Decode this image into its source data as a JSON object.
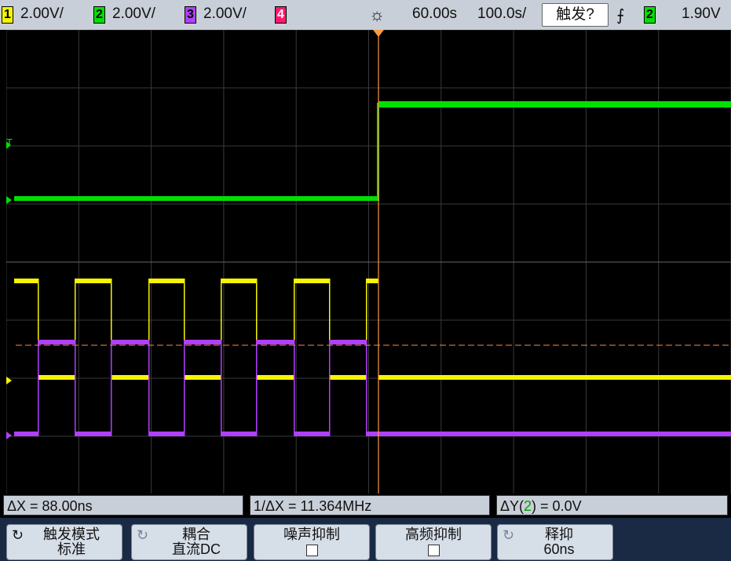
{
  "topbar": {
    "ch1": {
      "num": "1",
      "scale": "2.00V/",
      "color": "#f5f500"
    },
    "ch2": {
      "num": "2",
      "scale": "2.00V/",
      "color": "#00e000"
    },
    "ch3": {
      "num": "3",
      "scale": "2.00V/",
      "color": "#b040ff"
    },
    "ch4": {
      "num": "4",
      "color": "#ff1a6a"
    },
    "run_icon": "sun-icon",
    "time_pos": "60.00ѕ",
    "time_scale": "100.0ѕ/",
    "trigger_button": "触发?",
    "edge_icon": "rising-edge-icon",
    "trig_source": "2",
    "trig_level": "1.90V"
  },
  "measurements": {
    "dx": "ΔX = 88.00ns",
    "inv_dx": "1/ΔX = 11.364MHz",
    "dy_prefix": "ΔY(",
    "dy_ch": "2",
    "dy_suffix": ") = 0.0V"
  },
  "softkeys": {
    "mode": {
      "line1": "触发模式",
      "line2": "标准"
    },
    "coupling": {
      "line1": "耦合",
      "line2": "直流DC"
    },
    "noise": {
      "line1": "噪声抑制"
    },
    "hf": {
      "line1": "高频抑制"
    },
    "holdoff": {
      "line1": "释抑",
      "line2": "60ns"
    }
  },
  "colors": {
    "grid": "#3a3a3a",
    "cursor": "#ff9a40",
    "ch1": "#f5f500",
    "ch2": "#00e000",
    "ch3": "#b040ff"
  }
}
